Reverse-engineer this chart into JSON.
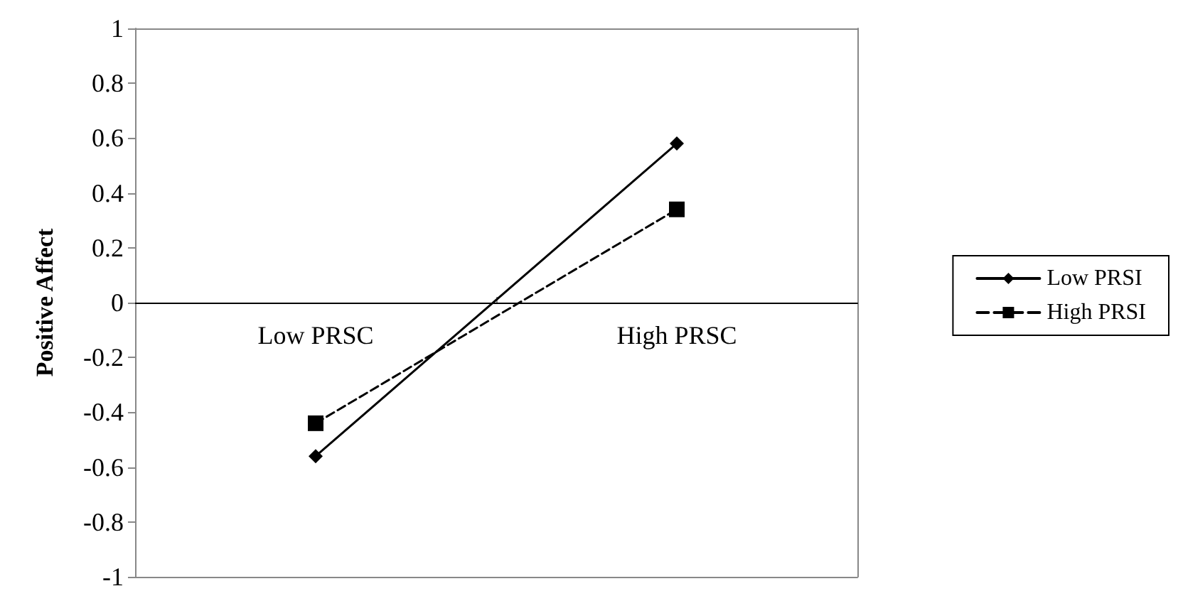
{
  "chart_data": {
    "type": "line",
    "ylabel": "Positive Affect",
    "categories": [
      "Low PRSC",
      "High PRSC"
    ],
    "series": [
      {
        "name": "Low PRSI",
        "color": "#000000",
        "values": [
          -0.56,
          0.58
        ],
        "marker": "diamond",
        "line_style": "solid"
      },
      {
        "name": "High PRSI",
        "color": "#000000",
        "values": [
          -0.44,
          0.34
        ],
        "marker": "square",
        "line_style": "dashed"
      }
    ],
    "ylim": [
      -1,
      1
    ],
    "yticks": [
      -1,
      -0.8,
      -0.6,
      -0.4,
      -0.2,
      0,
      0.2,
      0.4,
      0.6,
      0.8,
      1
    ],
    "grid": false,
    "legend": "right"
  }
}
